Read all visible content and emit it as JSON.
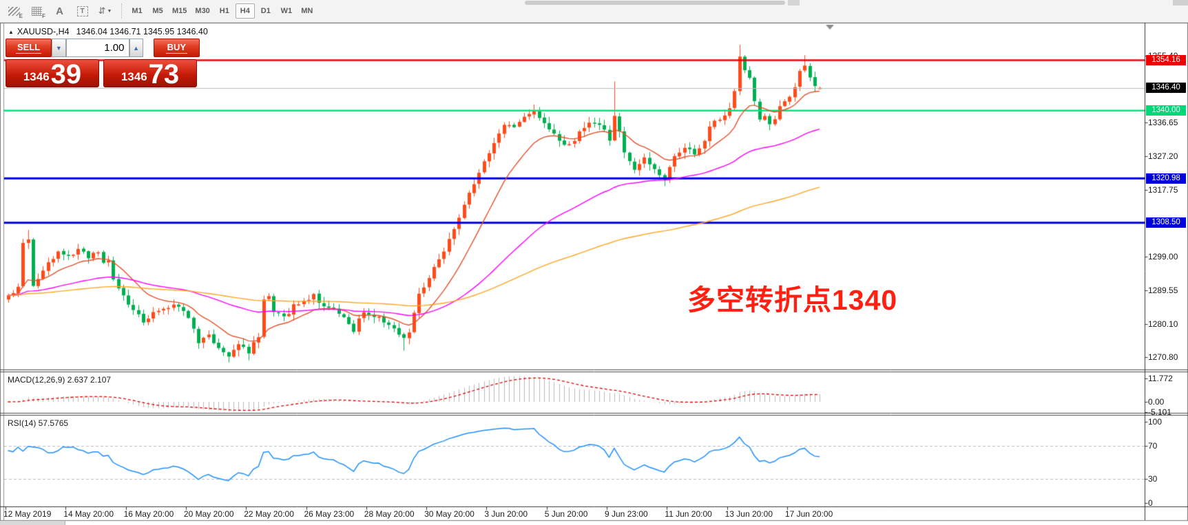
{
  "toolbar": {
    "tools": [
      {
        "name": "hatch-style-tool-icon",
        "glyph": "hatch",
        "sub": "E"
      },
      {
        "name": "grid-style-tool-icon",
        "glyph": "grid",
        "sub": "F"
      },
      {
        "name": "text-label-tool-icon",
        "glyph": "A",
        "label": "A"
      },
      {
        "name": "text-box-tool-icon",
        "glyph": "T",
        "label": "T"
      },
      {
        "name": "arrows-tool-icon",
        "glyph": "arrows"
      }
    ],
    "timeframes": [
      "M1",
      "M5",
      "M15",
      "M30",
      "H1",
      "H4",
      "D1",
      "W1",
      "MN"
    ],
    "active_timeframe": "H4"
  },
  "chart": {
    "collapse_glyph": "▲",
    "symbol_label": "XAUUSD-,H4",
    "ohlc": "1346.04 1346.71 1345.95 1346.40",
    "trade_panel": {
      "sell_label": "SELL",
      "buy_label": "BUY",
      "volume": "1.00",
      "vol_down_glyph": "▼",
      "vol_up_glyph": "▲",
      "sell_price_main": "1346",
      "sell_price_big": "39",
      "buy_price_main": "1346",
      "buy_price_big": "73"
    },
    "annotation": {
      "text": "多空转折点1340",
      "color": "#ff2012"
    },
    "axis_ticks": [
      "1355.40",
      "1336.65",
      "1327.20",
      "1317.75",
      "1299.00",
      "1289.55",
      "1280.10",
      "1270.80"
    ],
    "badges": [
      {
        "label": "1354.16",
        "price": 1354.16,
        "bg": "#ee0000"
      },
      {
        "label": "1346.40",
        "price": 1346.4,
        "bg": "#000000"
      },
      {
        "label": "1340.00",
        "price": 1340.0,
        "bg": "#00d878"
      },
      {
        "label": "1320.98",
        "price": 1320.98,
        "bg": "#0000dd"
      },
      {
        "label": "1308.50",
        "price": 1308.5,
        "bg": "#0000dd"
      }
    ],
    "date_labels": [
      "12 May 2019",
      "14 May 20:00",
      "16 May 20:00",
      "20 May 20:00",
      "22 May 20:00",
      "26 May 23:00",
      "28 May 20:00",
      "30 May 20:00",
      "3 Jun 20:00",
      "5 Jun 20:00",
      "9 Jun 23:00",
      "11 Jun 20:00",
      "13 Jun 20:00",
      "17 Jun 20:00"
    ]
  },
  "macd": {
    "label": "MACD(12,26,9) 2.637 2.107",
    "axis_ticks": [
      "11.772",
      "0.00",
      "-5.101"
    ]
  },
  "rsi": {
    "label": "RSI(14) 57.5765",
    "axis_ticks": [
      "100",
      "70",
      "30",
      "0"
    ]
  },
  "chart_data": {
    "type": "candlestick",
    "symbol": "XAUUSD",
    "timeframe": "H4",
    "visible_price_range": [
      1267.5,
      1364.5
    ],
    "bars": 163,
    "close_path_anchors": [
      [
        0,
        1288
      ],
      [
        1,
        1289
      ],
      [
        2,
        1291
      ],
      [
        3,
        1303
      ],
      [
        4,
        1304
      ],
      [
        5,
        1291
      ],
      [
        6,
        1293
      ],
      [
        8,
        1297
      ],
      [
        10,
        1300
      ],
      [
        12,
        1299
      ],
      [
        14,
        1301
      ],
      [
        16,
        1299
      ],
      [
        18,
        1300
      ],
      [
        19,
        1297
      ],
      [
        20,
        1298
      ],
      [
        21,
        1292
      ],
      [
        23,
        1288
      ],
      [
        25,
        1284
      ],
      [
        27,
        1281
      ],
      [
        29,
        1283
      ],
      [
        31,
        1284
      ],
      [
        33,
        1286
      ],
      [
        34,
        1285
      ],
      [
        36,
        1282
      ],
      [
        38,
        1275
      ],
      [
        40,
        1277
      ],
      [
        42,
        1273
      ],
      [
        44,
        1271
      ],
      [
        46,
        1274
      ],
      [
        48,
        1272
      ],
      [
        50,
        1277
      ],
      [
        51,
        1287
      ],
      [
        52,
        1288
      ],
      [
        53,
        1284
      ],
      [
        55,
        1282
      ],
      [
        57,
        1285
      ],
      [
        59,
        1287
      ],
      [
        61,
        1288
      ],
      [
        63,
        1285
      ],
      [
        65,
        1284
      ],
      [
        67,
        1282
      ],
      [
        69,
        1278
      ],
      [
        71,
        1284
      ],
      [
        73,
        1282
      ],
      [
        75,
        1281
      ],
      [
        77,
        1279
      ],
      [
        79,
        1276
      ],
      [
        80,
        1278
      ],
      [
        81,
        1283
      ],
      [
        82,
        1288
      ],
      [
        83,
        1291
      ],
      [
        85,
        1296
      ],
      [
        87,
        1301
      ],
      [
        89,
        1307
      ],
      [
        91,
        1314
      ],
      [
        93,
        1320
      ],
      [
        95,
        1326
      ],
      [
        97,
        1331
      ],
      [
        99,
        1336
      ],
      [
        101,
        1335
      ],
      [
        103,
        1338
      ],
      [
        105,
        1340
      ],
      [
        107,
        1337
      ],
      [
        109,
        1333
      ],
      [
        111,
        1330
      ],
      [
        113,
        1332
      ],
      [
        115,
        1335
      ],
      [
        117,
        1337
      ],
      [
        119,
        1334
      ],
      [
        120,
        1332
      ],
      [
        121,
        1339
      ],
      [
        122,
        1334
      ],
      [
        123,
        1328
      ],
      [
        125,
        1324
      ],
      [
        127,
        1327
      ],
      [
        129,
        1323
      ],
      [
        131,
        1320
      ],
      [
        132,
        1324
      ],
      [
        133,
        1327
      ],
      [
        135,
        1330
      ],
      [
        137,
        1327
      ],
      [
        139,
        1331
      ],
      [
        140,
        1335
      ],
      [
        141,
        1337
      ],
      [
        143,
        1338
      ],
      [
        144,
        1341
      ],
      [
        145,
        1346
      ],
      [
        146,
        1355
      ],
      [
        147,
        1352
      ],
      [
        148,
        1349
      ],
      [
        149,
        1342
      ],
      [
        150,
        1337
      ],
      [
        151,
        1339
      ],
      [
        152,
        1336
      ],
      [
        153,
        1338
      ],
      [
        154,
        1341
      ],
      [
        155,
        1342
      ],
      [
        156,
        1344
      ],
      [
        157,
        1347
      ],
      [
        158,
        1351
      ],
      [
        159,
        1353
      ],
      [
        160,
        1349
      ],
      [
        161,
        1347
      ],
      [
        162,
        1346.4
      ]
    ],
    "wick_spikes": [
      {
        "bar": 4,
        "high": 1306.5
      },
      {
        "bar": 44,
        "low": 1269.3
      },
      {
        "bar": 48,
        "low": 1269.9
      },
      {
        "bar": 79,
        "low": 1272.6
      },
      {
        "bar": 121,
        "high": 1348.2
      },
      {
        "bar": 131,
        "low": 1318.8
      },
      {
        "bar": 146,
        "high": 1358.5
      },
      {
        "bar": 159,
        "high": 1355.6
      }
    ],
    "last_bar": {
      "open": 1346.04,
      "high": 1346.71,
      "low": 1345.95,
      "close": 1346.4
    },
    "current_price": 1346.4,
    "levels": [
      {
        "price": 1354.16,
        "color": "#f40000",
        "width": 2.6
      },
      {
        "price": 1340.0,
        "color": "#00e57d",
        "width": 2.6
      },
      {
        "price": 1320.98,
        "color": "#0000dc",
        "width": 3
      },
      {
        "price": 1308.5,
        "color": "#0000dc",
        "width": 3
      }
    ],
    "moving_averages": [
      {
        "period": 13,
        "color": "#e8502a"
      },
      {
        "period": 55,
        "color": "#ff00ff"
      },
      {
        "period": 140,
        "color": "#ffa520"
      }
    ],
    "indicators": {
      "macd": {
        "fast": 12,
        "slow": 26,
        "signal": 9,
        "last_macd": 2.637,
        "last_signal": 2.107,
        "axis": [
          11.772,
          0.0,
          -5.101
        ]
      },
      "rsi": {
        "period": 14,
        "last": 57.5765,
        "levels": [
          70,
          30
        ],
        "axis": [
          100,
          70,
          30,
          0
        ]
      }
    },
    "colors": {
      "bull": "#ff4a19",
      "bear": "#00b050",
      "macd_hist": "#b8b8b8",
      "macd_signal": "#e00000",
      "rsi_line": "#1e90ff",
      "current_price_line": "#bcbcbc"
    }
  }
}
